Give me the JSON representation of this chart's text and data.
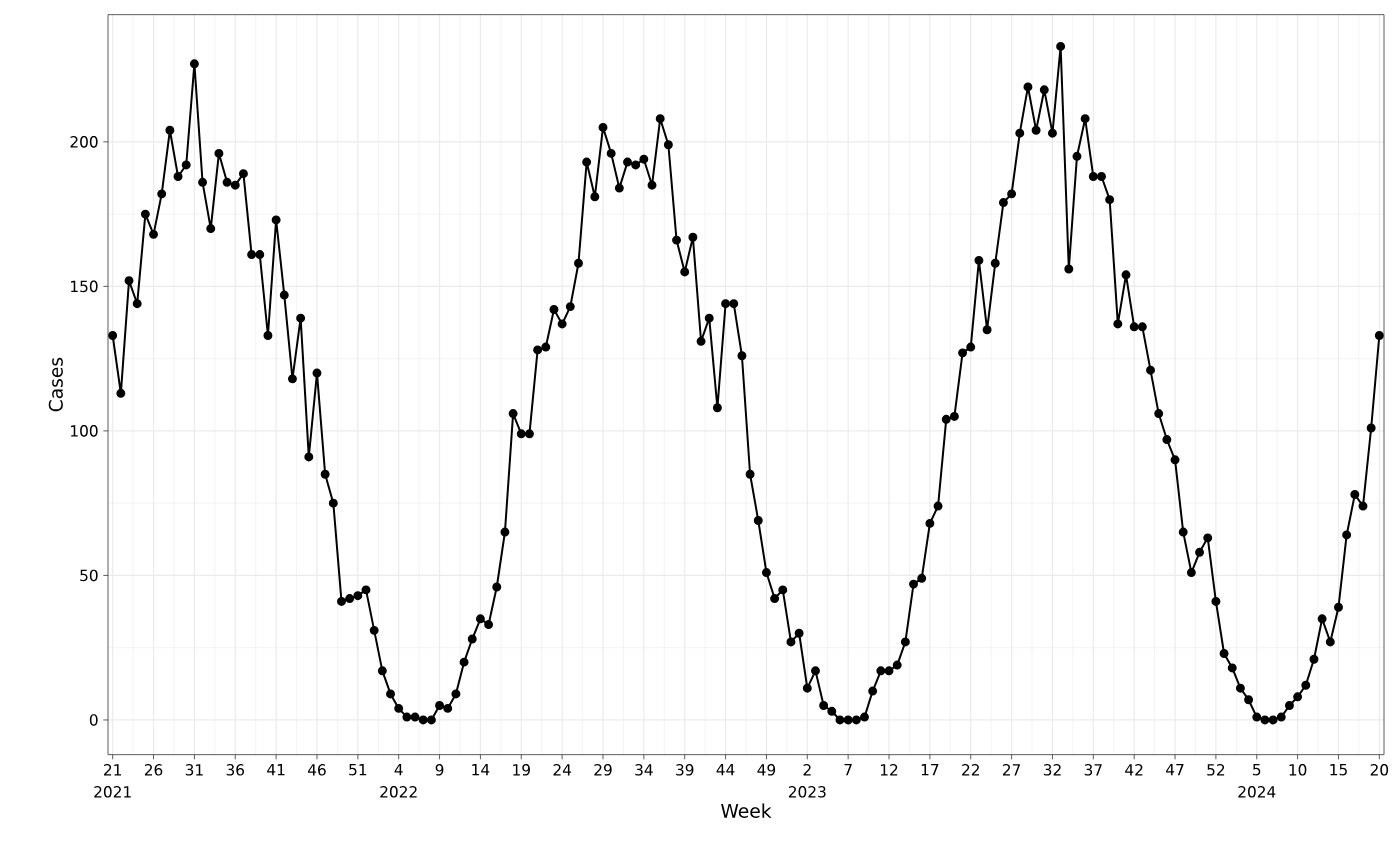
{
  "chart_data": {
    "type": "line",
    "xlabel": "Week",
    "ylabel": "Cases",
    "x": [
      "2021-05-24",
      "2021-05-31",
      "2021-06-07",
      "2021-06-14",
      "2021-06-21",
      "2021-06-28",
      "2021-07-05",
      "2021-07-12",
      "2021-07-19",
      "2021-07-26",
      "2021-08-02",
      "2021-08-09",
      "2021-08-16",
      "2021-08-23",
      "2021-08-30",
      "2021-09-06",
      "2021-09-13",
      "2021-09-20",
      "2021-09-27",
      "2021-10-04",
      "2021-10-11",
      "2021-10-18",
      "2021-10-25",
      "2021-11-01",
      "2021-11-08",
      "2021-11-15",
      "2021-11-22",
      "2021-11-29",
      "2021-12-06",
      "2021-12-13",
      "2021-12-20",
      "2021-12-27",
      "2022-01-03",
      "2022-01-10",
      "2022-01-17",
      "2022-01-24",
      "2022-01-31",
      "2022-02-07",
      "2022-02-14",
      "2022-02-21",
      "2022-02-28",
      "2022-03-07",
      "2022-03-14",
      "2022-03-21",
      "2022-03-28",
      "2022-04-04",
      "2022-04-11",
      "2022-04-18",
      "2022-04-25",
      "2022-05-02",
      "2022-05-09",
      "2022-05-16",
      "2022-05-23",
      "2022-05-30",
      "2022-06-06",
      "2022-06-13",
      "2022-06-20",
      "2022-06-27",
      "2022-07-04",
      "2022-07-11",
      "2022-07-18",
      "2022-07-25",
      "2022-08-01",
      "2022-08-08",
      "2022-08-15",
      "2022-08-22",
      "2022-08-29",
      "2022-09-05",
      "2022-09-12",
      "2022-09-19",
      "2022-09-26",
      "2022-10-03",
      "2022-10-10",
      "2022-10-17",
      "2022-10-24",
      "2022-10-31",
      "2022-11-07",
      "2022-11-14",
      "2022-11-21",
      "2022-11-28",
      "2022-12-05",
      "2022-12-12",
      "2022-12-19",
      "2022-12-26",
      "2023-01-02",
      "2023-01-09",
      "2023-01-16",
      "2023-01-23",
      "2023-01-30",
      "2023-02-06",
      "2023-02-13",
      "2023-02-20",
      "2023-02-27",
      "2023-03-06",
      "2023-03-13",
      "2023-03-20",
      "2023-03-27",
      "2023-04-03",
      "2023-04-10",
      "2023-04-17",
      "2023-04-24",
      "2023-05-01",
      "2023-05-08",
      "2023-05-15",
      "2023-05-22",
      "2023-05-29",
      "2023-06-05",
      "2023-06-12",
      "2023-06-19",
      "2023-06-26",
      "2023-07-03",
      "2023-07-10",
      "2023-07-17",
      "2023-07-24",
      "2023-07-31",
      "2023-08-07",
      "2023-08-14",
      "2023-08-21",
      "2023-08-28",
      "2023-09-04",
      "2023-09-11",
      "2023-09-18",
      "2023-09-25",
      "2023-10-02",
      "2023-10-09",
      "2023-10-16",
      "2023-10-23",
      "2023-10-30",
      "2023-11-06",
      "2023-11-13",
      "2023-11-20",
      "2023-11-27",
      "2023-12-04",
      "2023-12-11",
      "2023-12-18",
      "2023-12-25",
      "2024-01-01",
      "2024-01-08",
      "2024-01-15",
      "2024-01-22",
      "2024-01-29",
      "2024-02-05",
      "2024-02-12",
      "2024-02-19",
      "2024-02-26",
      "2024-03-04",
      "2024-03-11",
      "2024-03-18",
      "2024-03-25",
      "2024-04-01",
      "2024-04-08",
      "2024-04-15",
      "2024-04-22",
      "2024-04-29",
      "2024-05-06",
      "2024-05-13"
    ],
    "values": [
      133,
      113,
      152,
      144,
      175,
      168,
      182,
      204,
      188,
      192,
      227,
      186,
      170,
      196,
      186,
      185,
      189,
      161,
      161,
      133,
      173,
      147,
      118,
      139,
      91,
      120,
      85,
      75,
      41,
      42,
      43,
      45,
      31,
      17,
      9,
      4,
      1,
      1,
      0,
      0,
      5,
      4,
      9,
      20,
      28,
      35,
      33,
      46,
      65,
      106,
      99,
      99,
      128,
      129,
      142,
      137,
      143,
      158,
      193,
      181,
      205,
      196,
      184,
      193,
      192,
      194,
      185,
      208,
      199,
      166,
      155,
      167,
      131,
      139,
      108,
      144,
      144,
      126,
      85,
      69,
      51,
      42,
      45,
      27,
      30,
      11,
      17,
      5,
      3,
      0,
      0,
      0,
      1,
      10,
      17,
      17,
      19,
      27,
      47,
      49,
      68,
      74,
      104,
      105,
      127,
      129,
      159,
      135,
      158,
      179,
      182,
      203,
      219,
      204,
      218,
      203,
      233,
      156,
      195,
      208,
      188,
      188,
      180,
      137,
      154,
      136,
      136,
      121,
      106,
      97,
      90,
      65,
      51,
      58,
      63,
      41,
      23,
      18,
      11,
      7,
      1,
      0,
      0,
      1,
      5,
      8,
      12,
      21,
      35,
      27,
      39,
      64,
      78,
      74,
      101,
      133
    ],
    "color": "#000000",
    "marker": "circle",
    "line_style": "solid",
    "grid": true,
    "xlim": [
      "2021-05-20",
      "2024-05-17"
    ],
    "ylim": [
      -12,
      244
    ],
    "yticks": [
      0,
      50,
      100,
      150,
      200
    ],
    "xticks": [
      {
        "value": "2021-05-24",
        "label": "21"
      },
      {
        "value": "2021-06-28",
        "label": "26"
      },
      {
        "value": "2021-08-02",
        "label": "31"
      },
      {
        "value": "2021-09-06",
        "label": "36"
      },
      {
        "value": "2021-10-11",
        "label": "41"
      },
      {
        "value": "2021-11-15",
        "label": "46"
      },
      {
        "value": "2021-12-20",
        "label": "51"
      },
      {
        "value": "2022-01-24",
        "label": "4"
      },
      {
        "value": "2022-02-28",
        "label": "9"
      },
      {
        "value": "2022-04-04",
        "label": "14"
      },
      {
        "value": "2022-05-09",
        "label": "19"
      },
      {
        "value": "2022-06-13",
        "label": "24"
      },
      {
        "value": "2022-07-18",
        "label": "29"
      },
      {
        "value": "2022-08-22",
        "label": "34"
      },
      {
        "value": "2022-09-26",
        "label": "39"
      },
      {
        "value": "2022-10-31",
        "label": "44"
      },
      {
        "value": "2022-12-05",
        "label": "49"
      },
      {
        "value": "2023-01-09",
        "label": "2"
      },
      {
        "value": "2023-02-13",
        "label": "7"
      },
      {
        "value": "2023-03-20",
        "label": "12"
      },
      {
        "value": "2023-04-24",
        "label": "17"
      },
      {
        "value": "2023-05-29",
        "label": "22"
      },
      {
        "value": "2023-07-03",
        "label": "27"
      },
      {
        "value": "2023-08-07",
        "label": "32"
      },
      {
        "value": "2023-09-11",
        "label": "37"
      },
      {
        "value": "2023-10-16",
        "label": "42"
      },
      {
        "value": "2023-11-20",
        "label": "47"
      },
      {
        "value": "2023-12-25",
        "label": "52"
      },
      {
        "value": "2024-01-29",
        "label": "5"
      },
      {
        "value": "2024-03-04",
        "label": "10"
      },
      {
        "value": "2024-04-08",
        "label": "15"
      },
      {
        "value": "2024-05-13",
        "label": "20"
      }
    ],
    "annotations": [
      "2021",
      "2022",
      "2023",
      "2024"
    ]
  }
}
